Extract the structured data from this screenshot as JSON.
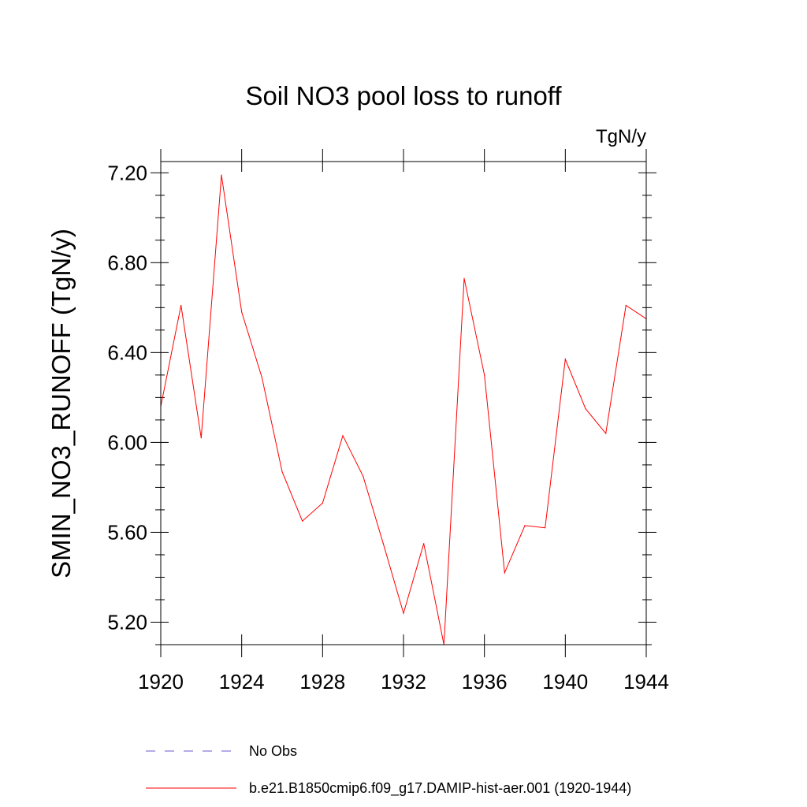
{
  "chart_data": {
    "type": "line",
    "title": "Soil NO3 pool loss to runoff",
    "units_label": "TgN/y",
    "ylabel": "SMIN_NO3_RUNOFF  (TgN/y)",
    "xlabel": "",
    "xlim": [
      1920,
      1944
    ],
    "ylim": [
      5.1,
      7.25
    ],
    "x_ticks": [
      1920,
      1924,
      1928,
      1932,
      1936,
      1940,
      1944
    ],
    "x_tick_labels": [
      "1920",
      "1924",
      "1928",
      "1932",
      "1936",
      "1940",
      "1944"
    ],
    "y_ticks": [
      5.2,
      5.6,
      6.0,
      6.4,
      6.8,
      7.2
    ],
    "y_tick_labels": [
      "5.20",
      "5.60",
      "6.00",
      "6.40",
      "6.80",
      "7.20"
    ],
    "grid": false,
    "legend_position": "bottom",
    "series": [
      {
        "name": "No Obs",
        "color": "#6a5acd",
        "style": "dashed",
        "x": [],
        "values": []
      },
      {
        "name": "b.e21.B1850cmip6.f09_g17.DAMIP-hist-aer.001 (1920-1944)",
        "color": "#ff0000",
        "style": "solid",
        "x": [
          1920,
          1921,
          1922,
          1923,
          1924,
          1925,
          1926,
          1927,
          1928,
          1929,
          1930,
          1931,
          1932,
          1933,
          1934,
          1935,
          1936,
          1937,
          1938,
          1939,
          1940,
          1941,
          1942,
          1943,
          1944
        ],
        "values": [
          6.16,
          6.61,
          6.02,
          7.19,
          6.58,
          6.29,
          5.87,
          5.65,
          5.73,
          6.03,
          5.85,
          5.55,
          5.24,
          5.55,
          5.1,
          6.73,
          6.3,
          5.42,
          5.63,
          5.62,
          6.37,
          6.15,
          6.04,
          6.61,
          6.55
        ]
      }
    ]
  }
}
